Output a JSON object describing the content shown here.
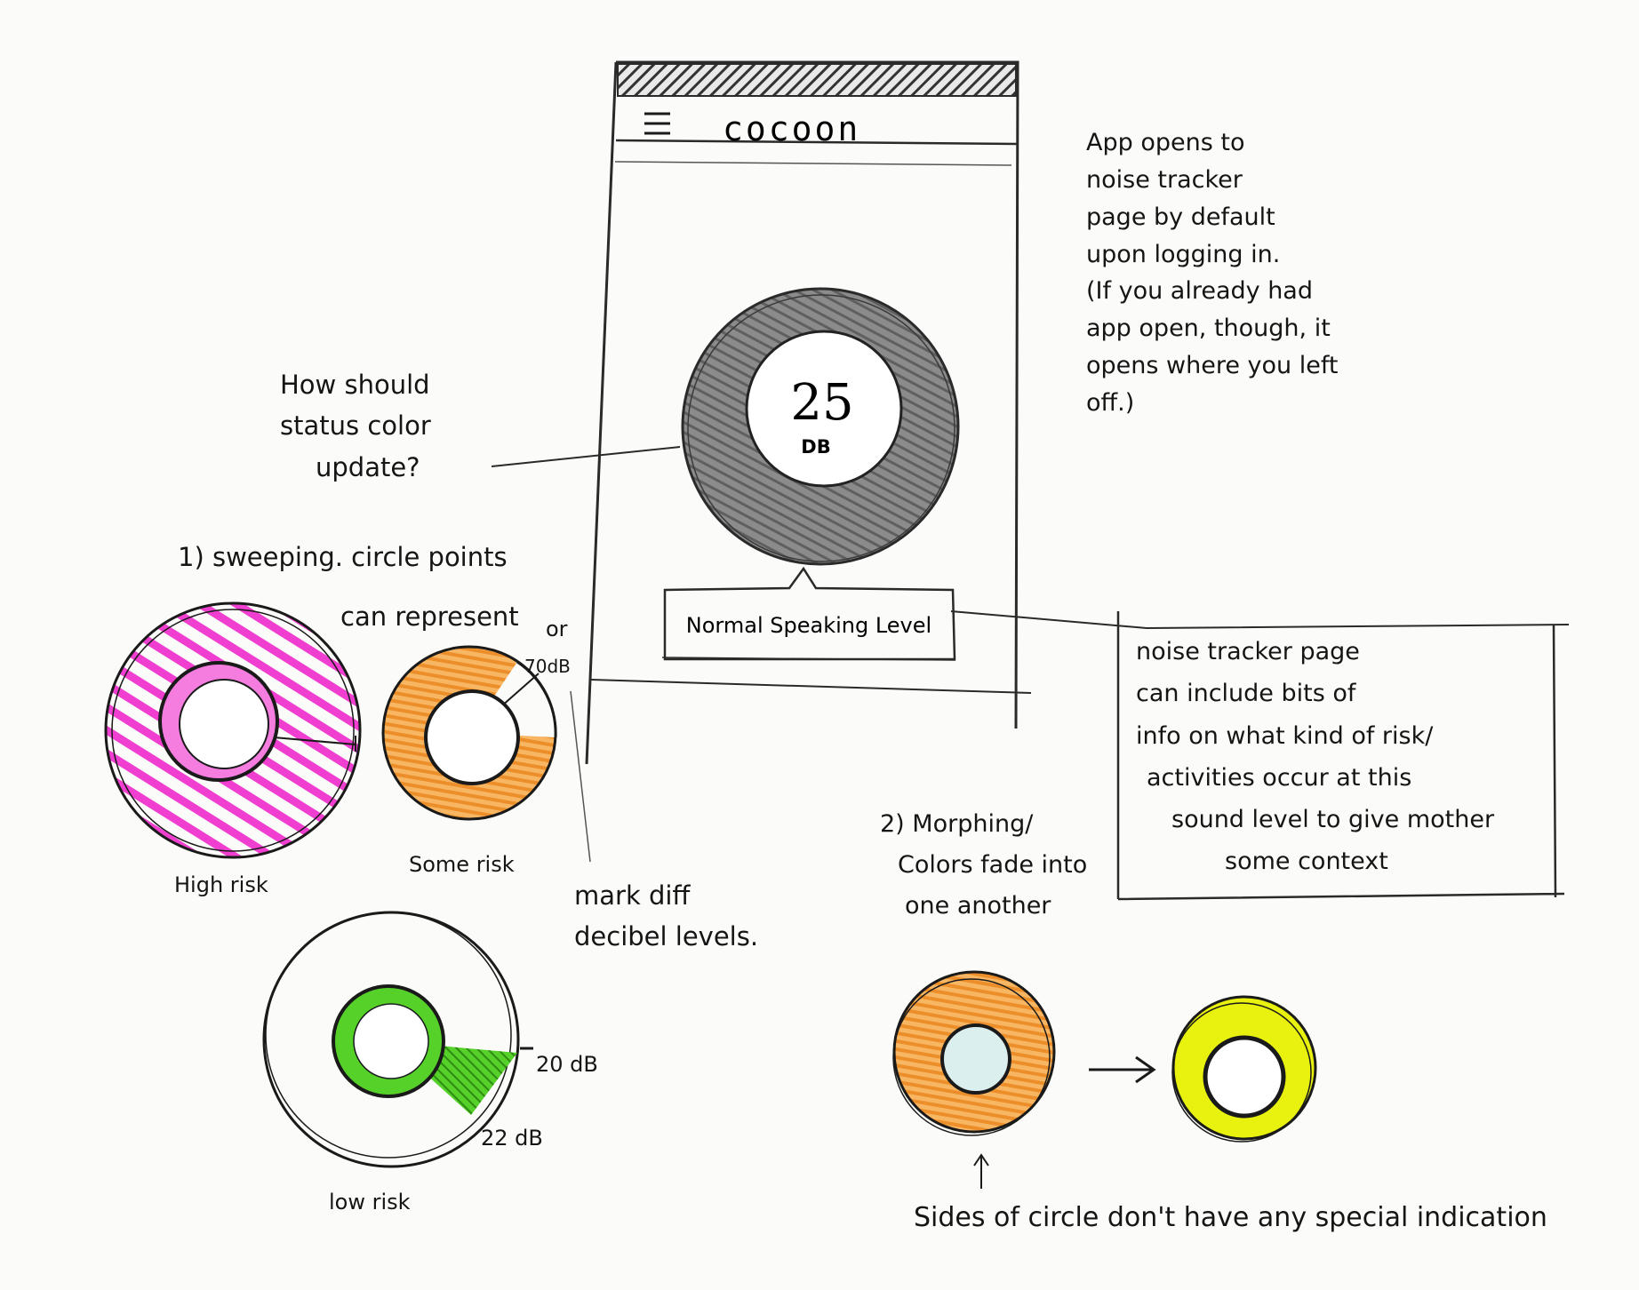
{
  "phone": {
    "app_title": "cocoon",
    "db_value": "25",
    "db_unit": "DB",
    "status_label": "Normal Speaking Level"
  },
  "notes": {
    "app_opens": [
      "App opens to",
      "noise tracker",
      "page by default",
      "upon logging in.",
      "(If you already had",
      "app open, though, it",
      "opens where you left",
      "off.)"
    ],
    "question": [
      "How should",
      "status color",
      "update?"
    ],
    "noise_box": [
      "noise tracker page",
      "can include bits of",
      "info on what kind of risk/",
      "activities occur at this",
      "sound level to give mother",
      "some context"
    ],
    "sweeping": "1) sweeping. circle points",
    "can_represent": "can represent",
    "or": "or",
    "mark_levels": [
      "mark diff",
      "decibel levels."
    ],
    "morphing": [
      "2) Morphing/",
      "Colors fade into",
      "one another"
    ],
    "sides_note": "Sides of circle don't have any special indication"
  },
  "dials": {
    "high_risk": "High risk",
    "some_risk": "Some risk",
    "some_risk_mark": "70dB",
    "low_risk": "low risk",
    "low_mark_a": "20 dB",
    "low_mark_b": "22 dB"
  },
  "colors": {
    "pink": "#f03ed0",
    "orange": "#f5a340",
    "green": "#55d12a",
    "yellow": "#e8f20e",
    "pencil_gray": "#6f6f6f"
  }
}
